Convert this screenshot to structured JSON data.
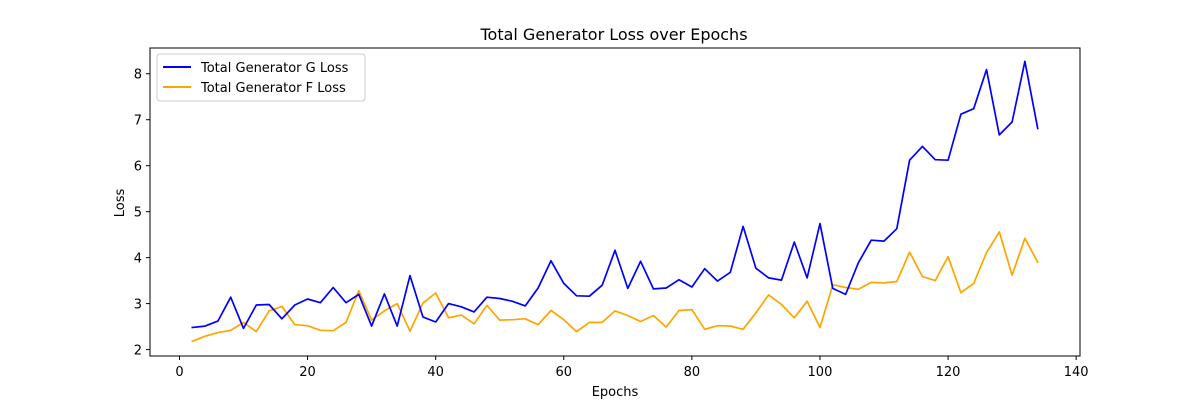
{
  "chart_data": {
    "type": "line",
    "title": "Total Generator Loss over Epochs",
    "xlabel": "Epochs",
    "ylabel": "Loss",
    "xlim": [
      -4.6,
      140.6
    ],
    "ylim": [
      1.86,
      8.56
    ],
    "xticks": [
      0,
      20,
      40,
      60,
      80,
      100,
      120,
      140
    ],
    "yticks": [
      2,
      3,
      4,
      5,
      6,
      7,
      8
    ],
    "grid": false,
    "legend_position": "upper-left",
    "x": [
      2,
      4,
      6,
      8,
      10,
      12,
      14,
      16,
      18,
      20,
      22,
      24,
      26,
      28,
      30,
      32,
      34,
      36,
      38,
      40,
      42,
      44,
      46,
      48,
      50,
      52,
      54,
      56,
      58,
      60,
      62,
      64,
      66,
      68,
      70,
      72,
      74,
      76,
      78,
      80,
      82,
      84,
      86,
      88,
      90,
      92,
      94,
      96,
      98,
      100,
      102,
      104,
      106,
      108,
      110,
      112,
      114,
      116,
      118,
      120,
      122,
      124,
      126,
      128,
      130,
      132,
      134
    ],
    "series": [
      {
        "name": "Total Generator G Loss",
        "color": "#0000ff",
        "values": [
          2.48,
          2.51,
          2.62,
          3.14,
          2.46,
          2.97,
          2.98,
          2.67,
          2.97,
          3.1,
          3.02,
          3.35,
          3.02,
          3.2,
          2.51,
          3.21,
          2.51,
          3.61,
          2.71,
          2.6,
          3.0,
          2.93,
          2.82,
          3.14,
          3.11,
          3.05,
          2.95,
          3.34,
          3.93,
          3.44,
          3.17,
          3.16,
          3.4,
          4.16,
          3.33,
          3.92,
          3.32,
          3.34,
          3.52,
          3.36,
          3.76,
          3.49,
          3.68,
          4.68,
          3.77,
          3.56,
          3.51,
          4.34,
          3.56,
          4.74,
          3.33,
          3.2,
          3.89,
          4.38,
          4.36,
          4.63,
          6.12,
          6.42,
          6.13,
          6.12,
          7.12,
          7.24,
          8.09,
          6.67,
          6.95,
          8.27,
          6.81
        ]
      },
      {
        "name": "Total Generator F Loss",
        "color": "#ffa500",
        "values": [
          2.18,
          2.29,
          2.37,
          2.42,
          2.59,
          2.39,
          2.84,
          2.94,
          2.54,
          2.52,
          2.42,
          2.41,
          2.59,
          3.28,
          2.64,
          2.84,
          3.0,
          2.4,
          3.01,
          3.23,
          2.69,
          2.75,
          2.56,
          2.96,
          2.64,
          2.65,
          2.67,
          2.54,
          2.85,
          2.65,
          2.39,
          2.59,
          2.59,
          2.84,
          2.74,
          2.61,
          2.74,
          2.49,
          2.85,
          2.87,
          2.44,
          2.52,
          2.51,
          2.44,
          2.8,
          3.19,
          2.98,
          2.69,
          3.05,
          2.48,
          3.41,
          3.35,
          3.31,
          3.46,
          3.45,
          3.48,
          4.12,
          3.59,
          3.5,
          4.02,
          3.24,
          3.44,
          4.11,
          4.56,
          3.62,
          4.42,
          3.9
        ]
      }
    ]
  }
}
